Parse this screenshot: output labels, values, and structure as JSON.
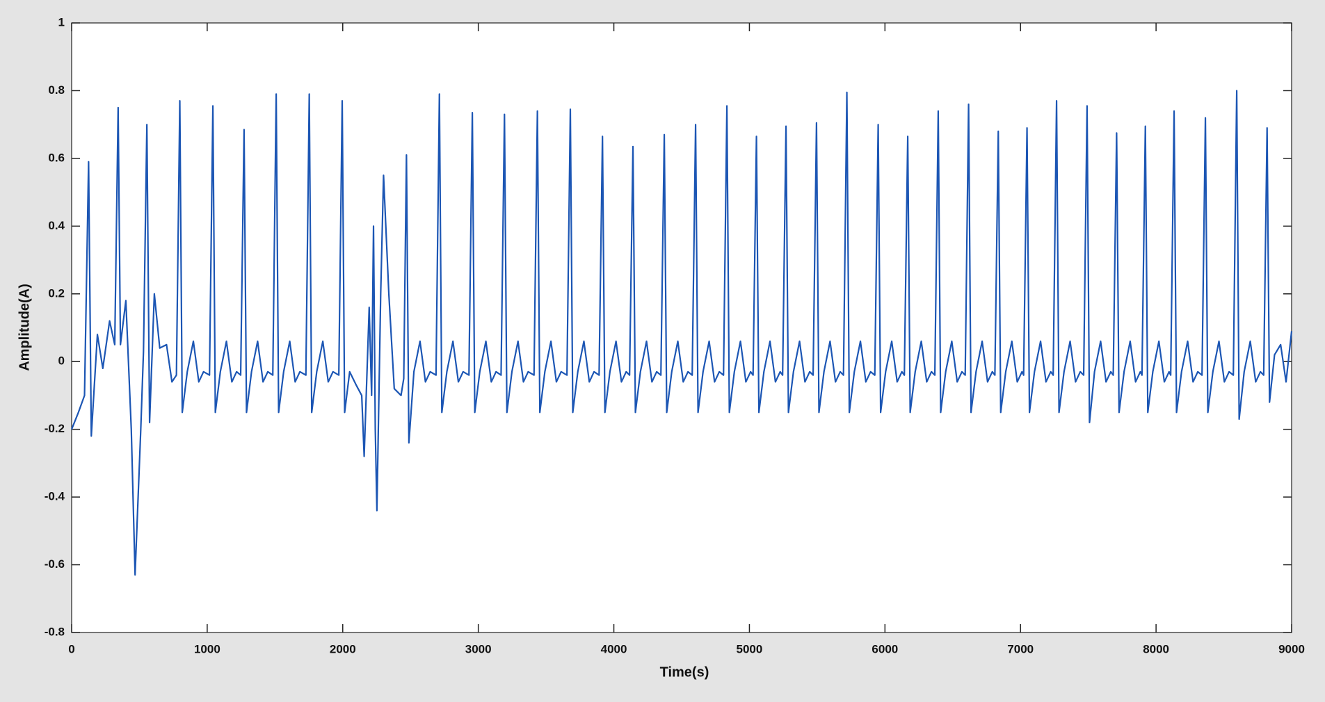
{
  "chart_data": {
    "type": "line",
    "xlabel": "Time(s)",
    "ylabel": "Amplitude(A)",
    "xlim": [
      0,
      9000
    ],
    "ylim": [
      -0.8,
      1
    ],
    "xticks": [
      0,
      1000,
      2000,
      3000,
      4000,
      5000,
      6000,
      7000,
      8000,
      9000
    ],
    "yticks": [
      -0.8,
      -0.6,
      -0.4,
      -0.2,
      0,
      0.2,
      0.4,
      0.6,
      0.8,
      1
    ],
    "x": [
      0,
      50,
      95,
      125,
      145,
      190,
      230,
      280,
      318,
      343,
      360,
      400,
      440,
      468,
      510,
      530,
      555,
      575,
      610,
      650,
      700,
      740,
      773,
      798,
      816,
      853,
      898,
      938,
      973,
      1017,
      1042,
      1060,
      1097,
      1142,
      1182,
      1217,
      1247,
      1272,
      1290,
      1327,
      1372,
      1412,
      1447,
      1484,
      1509,
      1527,
      1564,
      1609,
      1649,
      1684,
      1728,
      1753,
      1771,
      1808,
      1853,
      1893,
      1928,
      1971,
      1996,
      2014,
      2051,
      2100,
      2140,
      2158,
      2195,
      2213,
      2227,
      2240,
      2252,
      2280,
      2301,
      2340,
      2380,
      2430,
      2450,
      2470,
      2488,
      2525,
      2570,
      2610,
      2645,
      2688,
      2713,
      2731,
      2768,
      2813,
      2853,
      2888,
      2931,
      2956,
      2974,
      3011,
      3056,
      3096,
      3131,
      3168,
      3193,
      3211,
      3248,
      3293,
      3333,
      3368,
      3411,
      3436,
      3454,
      3491,
      3536,
      3576,
      3611,
      3654,
      3679,
      3697,
      3734,
      3779,
      3819,
      3854,
      3891,
      3916,
      3934,
      3971,
      4016,
      4056,
      4091,
      4116,
      4141,
      4159,
      4196,
      4241,
      4281,
      4316,
      4347,
      4372,
      4390,
      4427,
      4472,
      4512,
      4547,
      4578,
      4603,
      4621,
      4658,
      4703,
      4743,
      4778,
      4809,
      4834,
      4852,
      4889,
      4934,
      4974,
      5009,
      5027,
      5052,
      5070,
      5107,
      5152,
      5192,
      5227,
      5245,
      5270,
      5288,
      5325,
      5370,
      5410,
      5445,
      5470,
      5495,
      5513,
      5550,
      5595,
      5635,
      5670,
      5694,
      5719,
      5737,
      5774,
      5819,
      5859,
      5894,
      5925,
      5950,
      5968,
      6005,
      6050,
      6090,
      6125,
      6143,
      6168,
      6186,
      6223,
      6268,
      6308,
      6343,
      6368,
      6393,
      6411,
      6448,
      6493,
      6533,
      6568,
      6592,
      6617,
      6635,
      6672,
      6717,
      6757,
      6792,
      6811,
      6836,
      6854,
      6891,
      6936,
      6976,
      7011,
      7023,
      7048,
      7066,
      7103,
      7148,
      7188,
      7223,
      7241,
      7266,
      7284,
      7321,
      7366,
      7406,
      7441,
      7466,
      7491,
      7509,
      7546,
      7591,
      7631,
      7666,
      7684,
      7709,
      7727,
      7764,
      7809,
      7849,
      7884,
      7896,
      7921,
      7939,
      7976,
      8021,
      8061,
      8096,
      8108,
      8133,
      8151,
      8188,
      8233,
      8273,
      8308,
      8339,
      8364,
      8382,
      8419,
      8464,
      8504,
      8539,
      8570,
      8595,
      8613,
      8650,
      8695,
      8735,
      8770,
      8794,
      8819,
      8837,
      8874,
      8919,
      8959,
      9000
    ],
    "series": [
      {
        "color": "#1c56b4",
        "values": [
          -0.2,
          -0.15,
          -0.1,
          0.59,
          -0.22,
          0.08,
          -0.02,
          0.12,
          0.05,
          0.75,
          0.05,
          0.18,
          -0.2,
          -0.63,
          -0.2,
          0.03,
          0.7,
          -0.18,
          0.2,
          0.04,
          0.05,
          -0.06,
          -0.04,
          0.77,
          -0.15,
          -0.03,
          0.06,
          -0.06,
          -0.03,
          -0.04,
          0.755,
          -0.15,
          -0.03,
          0.06,
          -0.06,
          -0.03,
          -0.04,
          0.685,
          -0.15,
          -0.03,
          0.06,
          -0.06,
          -0.03,
          -0.04,
          0.79,
          -0.15,
          -0.03,
          0.06,
          -0.06,
          -0.03,
          -0.04,
          0.79,
          -0.15,
          -0.03,
          0.06,
          -0.06,
          -0.03,
          -0.04,
          0.77,
          -0.15,
          -0.03,
          -0.07,
          -0.1,
          -0.28,
          0.16,
          -0.1,
          0.4,
          -0.2,
          -0.44,
          0.2,
          0.55,
          0.2,
          -0.08,
          -0.1,
          -0.05,
          0.61,
          -0.24,
          -0.03,
          0.06,
          -0.06,
          -0.03,
          -0.04,
          0.79,
          -0.15,
          -0.03,
          0.06,
          -0.06,
          -0.03,
          -0.04,
          0.735,
          -0.15,
          -0.03,
          0.06,
          -0.06,
          -0.03,
          -0.04,
          0.73,
          -0.15,
          -0.03,
          0.06,
          -0.06,
          -0.03,
          -0.04,
          0.74,
          -0.15,
          -0.03,
          0.06,
          -0.06,
          -0.03,
          -0.04,
          0.745,
          -0.15,
          -0.03,
          0.06,
          -0.06,
          -0.03,
          -0.04,
          0.665,
          -0.15,
          -0.03,
          0.06,
          -0.06,
          -0.03,
          -0.04,
          0.635,
          -0.15,
          -0.03,
          0.06,
          -0.06,
          -0.03,
          -0.04,
          0.67,
          -0.15,
          -0.03,
          0.06,
          -0.06,
          -0.03,
          -0.04,
          0.7,
          -0.15,
          -0.03,
          0.06,
          -0.06,
          -0.03,
          -0.04,
          0.755,
          -0.15,
          -0.03,
          0.06,
          -0.06,
          -0.03,
          -0.04,
          0.665,
          -0.15,
          -0.03,
          0.06,
          -0.06,
          -0.03,
          -0.04,
          0.695,
          -0.15,
          -0.03,
          0.06,
          -0.06,
          -0.03,
          -0.04,
          0.705,
          -0.15,
          -0.03,
          0.06,
          -0.06,
          -0.03,
          -0.04,
          0.795,
          -0.15,
          -0.03,
          0.06,
          -0.06,
          -0.03,
          -0.04,
          0.7,
          -0.15,
          -0.03,
          0.06,
          -0.06,
          -0.03,
          -0.04,
          0.665,
          -0.15,
          -0.03,
          0.06,
          -0.06,
          -0.03,
          -0.04,
          0.74,
          -0.15,
          -0.03,
          0.06,
          -0.06,
          -0.03,
          -0.04,
          0.76,
          -0.15,
          -0.03,
          0.06,
          -0.06,
          -0.03,
          -0.04,
          0.68,
          -0.15,
          -0.03,
          0.06,
          -0.06,
          -0.03,
          -0.04,
          0.69,
          -0.15,
          -0.03,
          0.06,
          -0.06,
          -0.03,
          -0.04,
          0.77,
          -0.15,
          -0.03,
          0.06,
          -0.06,
          -0.03,
          -0.04,
          0.755,
          -0.18,
          -0.03,
          0.06,
          -0.06,
          -0.03,
          -0.04,
          0.675,
          -0.15,
          -0.03,
          0.06,
          -0.06,
          -0.03,
          -0.04,
          0.695,
          -0.15,
          -0.03,
          0.06,
          -0.06,
          -0.03,
          -0.04,
          0.74,
          -0.15,
          -0.03,
          0.06,
          -0.06,
          -0.03,
          -0.04,
          0.72,
          -0.15,
          -0.03,
          0.06,
          -0.06,
          -0.03,
          -0.04,
          0.8,
          -0.17,
          -0.03,
          0.06,
          -0.06,
          -0.03,
          -0.04,
          0.69,
          -0.12,
          0.02,
          0.05,
          -0.06,
          0.09
        ]
      }
    ]
  }
}
